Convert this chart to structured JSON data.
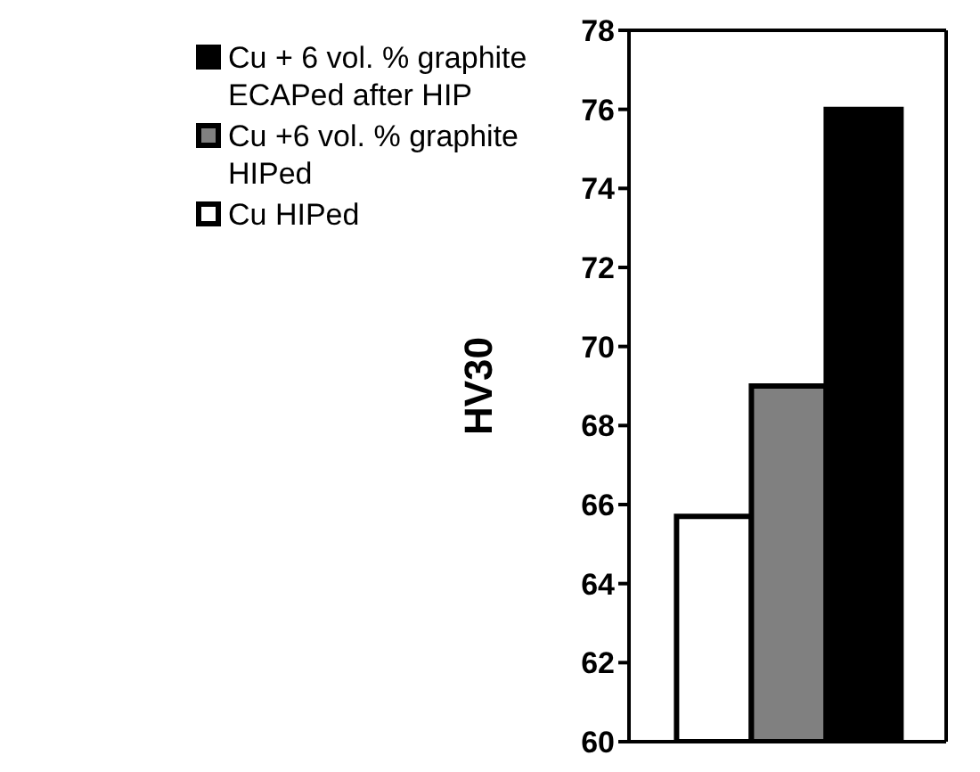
{
  "chart_data": {
    "type": "bar",
    "ylabel": "HV30",
    "categories": [
      null
    ],
    "series": [
      {
        "name": "Cu HIPed",
        "color": "#ffffff",
        "values": [
          65.7
        ]
      },
      {
        "name": "Cu +6 vol. % graphite HIPed",
        "color": "#808080",
        "values": [
          69.0
        ]
      },
      {
        "name": "Cu + 6 vol. % graphite ECAPed after HIP",
        "color": "#000000",
        "values": [
          76.0
        ]
      }
    ],
    "ylim": [
      60,
      78
    ],
    "yticks": [
      60,
      62,
      64,
      66,
      68,
      70,
      72,
      74,
      76,
      78
    ],
    "grid": false,
    "legend": "top left"
  }
}
